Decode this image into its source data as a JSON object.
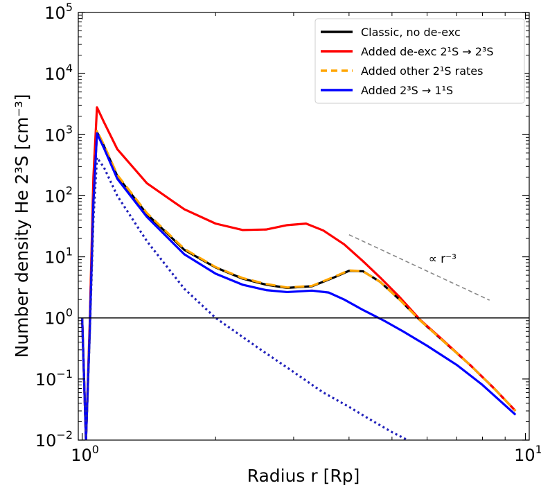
{
  "chart_data": {
    "type": "line",
    "xscale": "log",
    "yscale": "log",
    "xlim": [
      0.98,
      10.2
    ],
    "ylim": [
      0.01,
      100000
    ],
    "xlabel": "Radius r [Rp]",
    "ylabel": "Number density He 2³S [cm⁻³]",
    "xticks": [
      {
        "value": 1,
        "label": "10",
        "exp": "0"
      },
      {
        "value": 10,
        "label": "10",
        "exp": "1"
      }
    ],
    "yticks": [
      {
        "value": 0.01,
        "label": "10",
        "exp": "−2"
      },
      {
        "value": 0.1,
        "label": "10",
        "exp": "−1"
      },
      {
        "value": 1,
        "label": "10",
        "exp": "0"
      },
      {
        "value": 10,
        "label": "10",
        "exp": "1"
      },
      {
        "value": 100,
        "label": "10",
        "exp": "2"
      },
      {
        "value": 1000,
        "label": "10",
        "exp": "3"
      },
      {
        "value": 10000,
        "label": "10",
        "exp": "4"
      },
      {
        "value": 100000,
        "label": "10",
        "exp": "5"
      }
    ],
    "legend": {
      "position": "top-right",
      "entries": [
        {
          "text": "Classic,  no de-exc"
        },
        {
          "text": "Added de-exc 2¹S → 2³S"
        },
        {
          "text": "Added other 2¹S rates"
        },
        {
          "text": "Added 2³S → 1¹S"
        }
      ]
    },
    "series": [
      {
        "name": "Classic,  no de-exc",
        "color": "#000000",
        "style": "solid",
        "in_legend": true,
        "x": [
          1.0,
          1.02,
          1.04,
          1.06,
          1.08,
          1.12,
          1.2,
          1.4,
          1.7,
          2.0,
          2.3,
          2.6,
          2.9,
          3.3,
          3.7,
          4.0,
          4.3,
          4.7,
          5.2,
          5.8,
          6.5,
          7.5,
          8.5,
          9.5
        ],
        "y": [
          1.0,
          0.01,
          0.6,
          80,
          1100,
          650,
          210,
          50,
          13,
          6.7,
          4.4,
          3.5,
          3.1,
          3.3,
          4.6,
          5.9,
          5.8,
          3.9,
          2.0,
          0.9,
          0.43,
          0.17,
          0.07,
          0.03
        ]
      },
      {
        "name": "Added de-exc 2¹S → 2³S",
        "color": "#ff0000",
        "style": "solid",
        "in_legend": true,
        "x": [
          1.0,
          1.02,
          1.04,
          1.06,
          1.08,
          1.12,
          1.2,
          1.4,
          1.7,
          2.0,
          2.3,
          2.6,
          2.9,
          3.2,
          3.5,
          3.9,
          4.3,
          4.7,
          5.2,
          5.8,
          6.5,
          7.5,
          8.5,
          9.5
        ],
        "y": [
          1.0,
          0.01,
          0.8,
          200,
          2800,
          1600,
          580,
          160,
          60,
          35,
          27.5,
          28,
          33,
          35,
          27,
          16,
          8.5,
          4.6,
          2.2,
          0.92,
          0.44,
          0.17,
          0.07,
          0.03
        ]
      },
      {
        "name": "Added other 2¹S rates",
        "color": "#ffa500",
        "style": "dashed",
        "in_legend": true,
        "x": [
          1.0,
          1.02,
          1.04,
          1.06,
          1.08,
          1.12,
          1.2,
          1.4,
          1.7,
          2.0,
          2.3,
          2.6,
          2.9,
          3.3,
          3.7,
          4.0,
          4.3,
          4.7,
          5.2,
          5.8,
          6.5,
          7.5,
          8.5,
          9.5
        ],
        "y": [
          1.0,
          0.01,
          0.6,
          85,
          1150,
          680,
          220,
          52,
          13.5,
          6.8,
          4.5,
          3.6,
          3.15,
          3.35,
          4.7,
          6.0,
          5.8,
          3.9,
          2.0,
          0.9,
          0.43,
          0.17,
          0.07,
          0.03
        ]
      },
      {
        "name": "Added 2³S → 1¹S",
        "color": "#0000ff",
        "style": "solid",
        "in_legend": true,
        "x": [
          1.0,
          1.02,
          1.04,
          1.06,
          1.08,
          1.12,
          1.2,
          1.4,
          1.7,
          2.0,
          2.3,
          2.6,
          2.9,
          3.3,
          3.6,
          3.9,
          4.3,
          4.8,
          5.3,
          6.0,
          7.0,
          8.0,
          9.5
        ],
        "y": [
          1.0,
          0.01,
          0.6,
          80,
          1050,
          600,
          190,
          45,
          11,
          5.3,
          3.5,
          2.85,
          2.65,
          2.8,
          2.6,
          2.0,
          1.35,
          0.9,
          0.6,
          0.35,
          0.17,
          0.08,
          0.026
        ]
      },
      {
        "name": "dotted",
        "color": "#2222bb",
        "style": "dotted",
        "in_legend": false,
        "x": [
          1.0,
          1.02,
          1.04,
          1.06,
          1.08,
          1.12,
          1.2,
          1.4,
          1.7,
          2.0,
          2.5,
          3.0,
          3.5,
          4.0,
          4.5,
          5.0,
          5.5
        ],
        "y": [
          1.0,
          0.01,
          0.5,
          40,
          420,
          290,
          100,
          18,
          3.0,
          1.0,
          0.32,
          0.13,
          0.06,
          0.035,
          0.021,
          0.0135,
          0.0095
        ]
      },
      {
        "name": "power-law guide",
        "color": "#888888",
        "style": "dashed",
        "in_legend": false,
        "x": [
          4.0,
          8.3
        ],
        "y": [
          23,
          1.95
        ]
      },
      {
        "name": "unity line",
        "color": "#000000",
        "style": "solid",
        "in_legend": false,
        "x": [
          0.98,
          10.2
        ],
        "y": [
          1.0,
          1.0
        ]
      }
    ],
    "annotations": [
      {
        "text": "∝ r⁻³",
        "x": 6.5,
        "y": 8
      }
    ]
  }
}
